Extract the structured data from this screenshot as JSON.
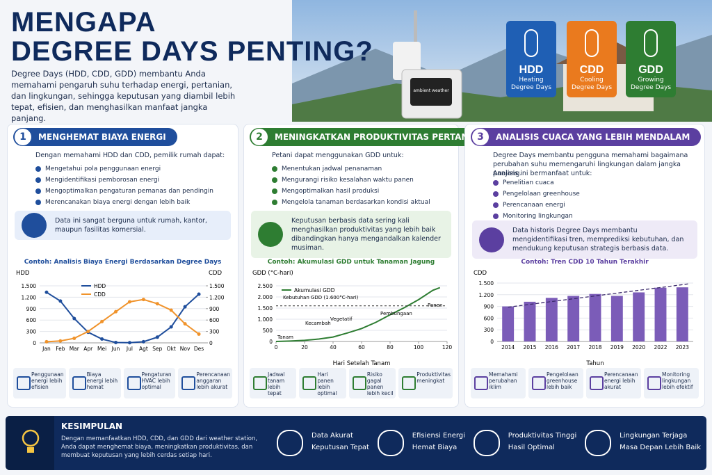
{
  "header": {
    "title_line1": "MENGAPA",
    "title_line2": "DEGREE DAYS PENTING?",
    "description": "Degree Days (HDD, CDD, GDD) membantu Anda memahami pengaruh suhu terhadap energi, pertanian, dan lingkungan, sehingga keputusan yang diambil lebih tepat, efisien, dan menghasilkan manfaat jangka panjang."
  },
  "badges": [
    {
      "abbr": "HDD",
      "label": "Heating Degree Days"
    },
    {
      "abbr": "CDD",
      "label": "Cooling Degree Days"
    },
    {
      "abbr": "GDD",
      "label": "Growing Degree Days"
    }
  ],
  "device_label": "ambient weather",
  "panels": [
    {
      "number": "1",
      "title": "MENGHEMAT BIAYA ENERGI",
      "intro": "Dengan memahami HDD dan CDD, pemilik rumah dapat:",
      "items": [
        "Mengetahui pola penggunaan energi",
        "Mengidentifikasi pemborosan energi",
        "Mengoptimalkan pengaturan pemanas dan pendingin",
        "Merencanakan biaya energi dengan lebih baik"
      ],
      "callout": "Data ini sangat berguna untuk rumah, kantor, maupun fasilitas komersial.",
      "footer": [
        "Penggunaan energi lebih efisien",
        "Biaya energi lebih hemat",
        "Pengaturan HVAC lebih optimal",
        "Perencanaan anggaran lebih akurat"
      ]
    },
    {
      "number": "2",
      "title": "MENINGKATKAN PRODUKTIVITAS PERTANIAN",
      "intro": "Petani dapat menggunakan GDD untuk:",
      "items": [
        "Menentukan jadwal penanaman",
        "Mengurangi risiko kesalahan waktu panen",
        "Mengoptimalkan hasil produksi",
        "Mengelola tanaman berdasarkan kondisi aktual"
      ],
      "callout": "Keputusan berbasis data sering kali menghasilkan produktivitas yang lebih baik dibandingkan hanya mengandalkan kalender musiman.",
      "footer": [
        "Jadwal tanam lebih tepat",
        "Hari panen lebih optimal",
        "Risiko gagal panen lebih kecil",
        "Produktivitas meningkat"
      ]
    },
    {
      "number": "3",
      "title": "ANALISIS CUACA YANG LEBIH MENDALAM",
      "intro": "Degree Days membantu pengguna memahami bagaimana perubahan suhu memengaruhi lingkungan dalam jangka panjang.",
      "subintro": "Analisis ini bermanfaat untuk:",
      "items": [
        "Penelitian cuaca",
        "Pengelolaan greenhouse",
        "Perencanaan energi",
        "Monitoring lingkungan"
      ],
      "callout": "Data historis Degree Days membantu mengidentifikasi tren, memprediksi kebutuhan, dan mendukung keputusan strategis berbasis data.",
      "footer": [
        "Memahami perubahan iklim",
        "Pengelolaan greenhouse lebih baik",
        "Perencanaan energi lebih akurat",
        "Monitoring lingkungan lebih efektif"
      ]
    }
  ],
  "chart_data": [
    {
      "type": "line",
      "title": "Contoh: Analisis Biaya Energi Berdasarkan Degree Days",
      "ylabel": "HDD",
      "y2label": "CDD",
      "categories": [
        "Jan",
        "Feb",
        "Mar",
        "Apr",
        "Mei",
        "Jun",
        "Jul",
        "Agt",
        "Sep",
        "Okt",
        "Nov",
        "Des"
      ],
      "series": [
        {
          "name": "HDD",
          "color": "#1f4e9c",
          "values": [
            1330,
            1100,
            640,
            280,
            100,
            10,
            5,
            30,
            150,
            420,
            950,
            1280
          ]
        },
        {
          "name": "CDD",
          "color": "#f0932b",
          "axis": "y2",
          "values": [
            30,
            50,
            120,
            300,
            560,
            820,
            1080,
            1140,
            1030,
            860,
            500,
            230
          ]
        }
      ],
      "ylim": [
        0,
        1500
      ],
      "yticks": [
        0,
        300,
        600,
        900,
        {
          "value": 1200,
          "label": "1.200"
        },
        {
          "value": 1500,
          "label": "1.500"
        }
      ],
      "y2lim": [
        0,
        1500
      ],
      "y2ticks": [
        0,
        300,
        600,
        900,
        {
          "value": 1200,
          "label": "1.200"
        },
        {
          "value": 1500,
          "label": "1.500"
        }
      ]
    },
    {
      "type": "line",
      "title": "Contoh: Akumulasi GDD untuk Tanaman Jagung",
      "ylabel": "GDD (°C-hari)",
      "xlabel": "Hari Setelah Tanam",
      "x": [
        0,
        10,
        20,
        30,
        40,
        50,
        60,
        70,
        80,
        90,
        100,
        110,
        115
      ],
      "series": [
        {
          "name": "Akumulasi GDD",
          "color": "#2e7d32",
          "values": [
            0,
            20,
            50,
            110,
            200,
            380,
            580,
            860,
            1200,
            1520,
            1880,
            2300,
            2420
          ]
        }
      ],
      "threshold": {
        "value": 1600,
        "label": "Kebutuhan GDD (1.600°C-hari)"
      },
      "stages": [
        "Tanam",
        "Kecambah",
        "Vegetatif",
        "Pembungaan",
        "Panen"
      ],
      "xlim": [
        0,
        120
      ],
      "xticks": [
        0,
        20,
        40,
        60,
        80,
        100,
        120
      ],
      "ylim": [
        0,
        2500
      ],
      "yticks": [
        0,
        500,
        {
          "value": 1000,
          "label": "1.000"
        },
        {
          "value": 1500,
          "label": "1.500"
        },
        {
          "value": 2000,
          "label": "2.000"
        },
        {
          "value": 2500,
          "label": "2.500"
        }
      ]
    },
    {
      "type": "bar",
      "title": "Contoh: Tren CDD 10 Tahun Terakhir",
      "ylabel": "CDD",
      "xlabel": "Tahun",
      "categories": [
        "2014",
        "2015",
        "2016",
        "2017",
        "2018",
        "2019",
        "2020",
        "2022",
        "2023"
      ],
      "values": [
        900,
        1020,
        1120,
        1170,
        1220,
        1170,
        1260,
        1380,
        1390
      ],
      "color": "#7b5cb8",
      "trendline": [
        880,
        1480
      ],
      "ylim": [
        0,
        1500
      ],
      "yticks": [
        0,
        300,
        600,
        900,
        {
          "value": 1200,
          "label": "1.200"
        },
        {
          "value": 1500,
          "label": "1.500"
        }
      ]
    }
  ],
  "conclusion": {
    "title": "KESIMPULAN",
    "text": "Dengan memanfaatkan HDD, CDD, dan GDD dari weather station, Anda dapat menghemat biaya, meningkatkan produktivitas, dan membuat keputusan yang lebih cerdas setiap hari."
  },
  "benefits": [
    {
      "title": "Data Akurat",
      "subtitle": "Keputusan Tepat"
    },
    {
      "title": "Efisiensi Energi",
      "subtitle": "Hemat Biaya"
    },
    {
      "title": "Produktivitas Tinggi",
      "subtitle": "Hasil Optimal"
    },
    {
      "title": "Lingkungan Terjaga",
      "subtitle": "Masa Depan Lebih Baik"
    }
  ]
}
